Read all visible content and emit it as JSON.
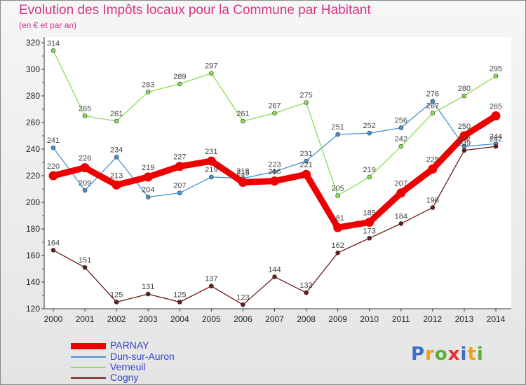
{
  "chart_data": {
    "type": "line",
    "title": "Evolution des Impôts locaux pour la Commune par Habitant",
    "subtitle": "(en € et par an)",
    "categories": [
      "2000",
      "2001",
      "2002",
      "2003",
      "2004",
      "2005",
      "2006",
      "2007",
      "2008",
      "2009",
      "2010",
      "2011",
      "2012",
      "2013",
      "2014"
    ],
    "ylim": [
      120,
      320
    ],
    "yticks": [
      120,
      140,
      160,
      180,
      200,
      220,
      240,
      260,
      280,
      300,
      320
    ],
    "grid": false,
    "legend_position": "bottom-left",
    "series": [
      {
        "name": "Dun-sur-Auron",
        "color": "#4a90d0",
        "values": [
          241,
          209,
          234,
          204,
          207,
          219,
          218,
          223,
          231,
          251,
          252,
          256,
          276,
          242,
          244
        ]
      },
      {
        "name": "Verneuil",
        "color": "#88dd55",
        "values": [
          314,
          265,
          261,
          283,
          289,
          297,
          261,
          267,
          275,
          205,
          219,
          242,
          267,
          280,
          295
        ]
      },
      {
        "name": "Cogny",
        "color": "#6b1a1a",
        "values": [
          164,
          151,
          125,
          131,
          125,
          137,
          123,
          144,
          132,
          162,
          173,
          184,
          196,
          239,
          242
        ]
      },
      {
        "name": "PARNAY",
        "color": "#ee0000",
        "values": [
          220,
          226,
          213,
          219,
          227,
          231,
          215,
          216,
          221,
          181,
          185,
          207,
          225,
          250,
          265
        ]
      }
    ]
  },
  "legend": {
    "items": [
      "PARNAY",
      "Dun-sur-Auron",
      "Verneuil",
      "Cogny"
    ]
  },
  "brand": {
    "letters": [
      "P",
      "r",
      "o",
      "x",
      "i",
      "t",
      "i"
    ],
    "colors": [
      "#3a6fc4",
      "#f0a020",
      "#5cb030",
      "#e83030",
      "#3a6fc4",
      "#f0a020",
      "#5cb030"
    ]
  }
}
